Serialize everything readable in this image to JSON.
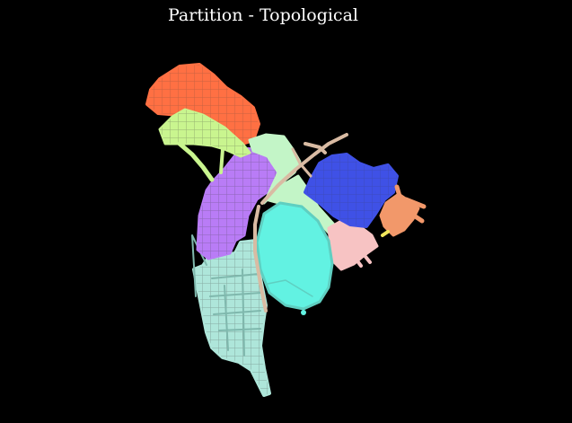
{
  "title": "Partition - Topological",
  "colors": {
    "background": "#000000",
    "orange_red": "#ff7043",
    "lime": "#c9f58f",
    "mint": "#c3f5c7",
    "purple": "#b97cf6",
    "blue": "#3f51e6",
    "cyan": "#62f2e2",
    "seafoam": "#aee6da",
    "pink": "#f7c3c3",
    "peach": "#f2986a",
    "tan_roads": "#d9bba3",
    "yellow_small": "#f0e65a"
  }
}
